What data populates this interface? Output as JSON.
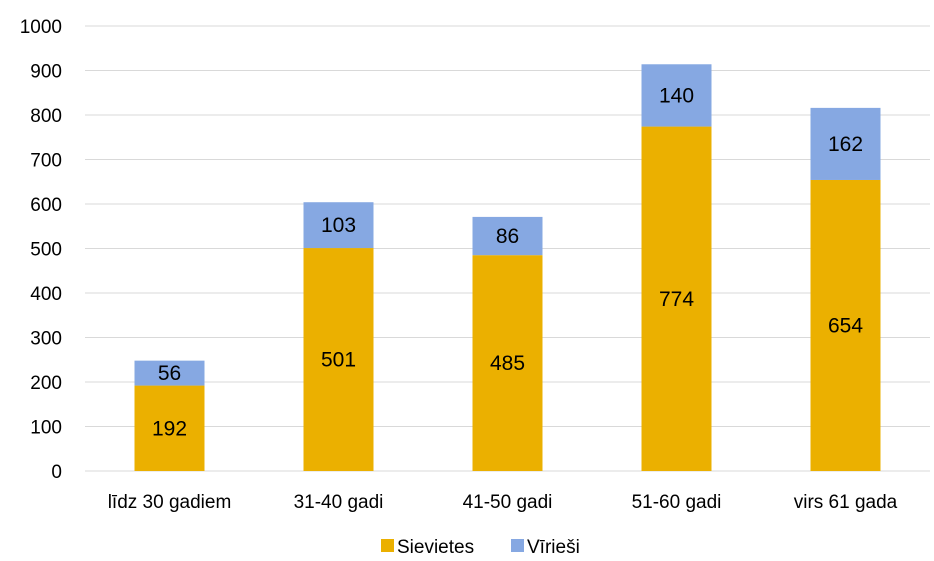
{
  "chart_data": {
    "type": "bar",
    "stacked": true,
    "categories": [
      "līdz 30 gadiem",
      "31-40 gadi",
      "41-50 gadi",
      "51-60 gadi",
      "virs 61 gada"
    ],
    "series": [
      {
        "name": "Sievietes",
        "values": [
          192,
          501,
          485,
          774,
          654
        ],
        "color": "#EBB000"
      },
      {
        "name": "Vīrieši",
        "values": [
          56,
          103,
          86,
          140,
          162
        ],
        "color": "#86A8E2"
      }
    ],
    "ylim": [
      0,
      1000
    ],
    "yticks": [
      0,
      100,
      200,
      300,
      400,
      500,
      600,
      700,
      800,
      900,
      1000
    ],
    "grid": true,
    "legend": "bottom"
  }
}
